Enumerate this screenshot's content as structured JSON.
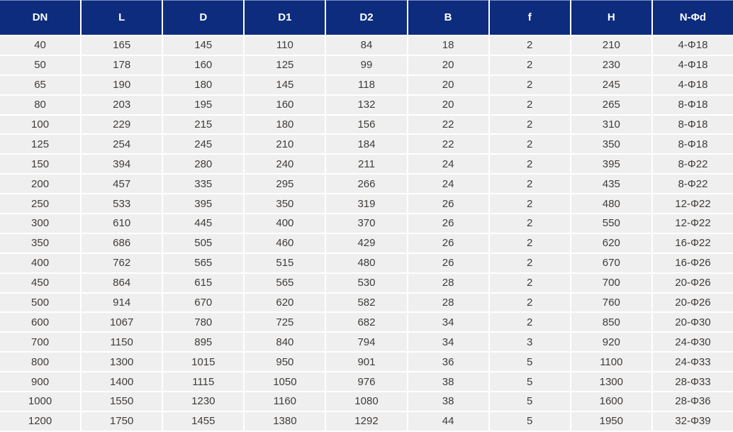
{
  "table": {
    "columns": [
      "DN",
      "L",
      "D",
      "D1",
      "D2",
      "B",
      "f",
      "H",
      "N-Φd"
    ],
    "rows": [
      [
        "40",
        "165",
        "145",
        "110",
        "84",
        "18",
        "2",
        "210",
        "4-Φ18"
      ],
      [
        "50",
        "178",
        "160",
        "125",
        "99",
        "20",
        "2",
        "230",
        "4-Φ18"
      ],
      [
        "65",
        "190",
        "180",
        "145",
        "118",
        "20",
        "2",
        "245",
        "4-Φ18"
      ],
      [
        "80",
        "203",
        "195",
        "160",
        "132",
        "20",
        "2",
        "265",
        "8-Φ18"
      ],
      [
        "100",
        "229",
        "215",
        "180",
        "156",
        "22",
        "2",
        "310",
        "8-Φ18"
      ],
      [
        "125",
        "254",
        "245",
        "210",
        "184",
        "22",
        "2",
        "350",
        "8-Φ18"
      ],
      [
        "150",
        "394",
        "280",
        "240",
        "211",
        "24",
        "2",
        "395",
        "8-Φ22"
      ],
      [
        "200",
        "457",
        "335",
        "295",
        "266",
        "24",
        "2",
        "435",
        "8-Φ22"
      ],
      [
        "250",
        "533",
        "395",
        "350",
        "319",
        "26",
        "2",
        "480",
        "12-Φ22"
      ],
      [
        "300",
        "610",
        "445",
        "400",
        "370",
        "26",
        "2",
        "550",
        "12-Φ22"
      ],
      [
        "350",
        "686",
        "505",
        "460",
        "429",
        "26",
        "2",
        "620",
        "16-Φ22"
      ],
      [
        "400",
        "762",
        "565",
        "515",
        "480",
        "26",
        "2",
        "670",
        "16-Φ26"
      ],
      [
        "450",
        "864",
        "615",
        "565",
        "530",
        "28",
        "2",
        "700",
        "20-Φ26"
      ],
      [
        "500",
        "914",
        "670",
        "620",
        "582",
        "28",
        "2",
        "760",
        "20-Φ26"
      ],
      [
        "600",
        "1067",
        "780",
        "725",
        "682",
        "34",
        "2",
        "850",
        "20-Φ30"
      ],
      [
        "700",
        "1150",
        "895",
        "840",
        "794",
        "34",
        "3",
        "920",
        "24-Φ30"
      ],
      [
        "800",
        "1300",
        "1015",
        "950",
        "901",
        "36",
        "5",
        "1100",
        "24-Φ33"
      ],
      [
        "900",
        "1400",
        "1115",
        "1050",
        "976",
        "38",
        "5",
        "1300",
        "28-Φ33"
      ],
      [
        "1000",
        "1550",
        "1230",
        "1160",
        "1080",
        "38",
        "5",
        "1600",
        "28-Φ36"
      ],
      [
        "1200",
        "1750",
        "1455",
        "1380",
        "1292",
        "44",
        "5",
        "1950",
        "32-Φ39"
      ]
    ],
    "colors": {
      "header_bg": "#0d2c7e",
      "header_text": "#ffffff",
      "row_bg": "#efefef",
      "separator": "#ffffff",
      "body_text": "#403c39"
    }
  },
  "chart_data": {
    "type": "table",
    "title": "",
    "columns": [
      "DN",
      "L",
      "D",
      "D1",
      "D2",
      "B",
      "f",
      "H",
      "N-Φd"
    ],
    "rows": [
      [
        40,
        165,
        145,
        110,
        84,
        18,
        2,
        210,
        "4-Φ18"
      ],
      [
        50,
        178,
        160,
        125,
        99,
        20,
        2,
        230,
        "4-Φ18"
      ],
      [
        65,
        190,
        180,
        145,
        118,
        20,
        2,
        245,
        "4-Φ18"
      ],
      [
        80,
        203,
        195,
        160,
        132,
        20,
        2,
        265,
        "8-Φ18"
      ],
      [
        100,
        229,
        215,
        180,
        156,
        22,
        2,
        310,
        "8-Φ18"
      ],
      [
        125,
        254,
        245,
        210,
        184,
        22,
        2,
        350,
        "8-Φ18"
      ],
      [
        150,
        394,
        280,
        240,
        211,
        24,
        2,
        395,
        "8-Φ22"
      ],
      [
        200,
        457,
        335,
        295,
        266,
        24,
        2,
        435,
        "8-Φ22"
      ],
      [
        250,
        533,
        395,
        350,
        319,
        26,
        2,
        480,
        "12-Φ22"
      ],
      [
        300,
        610,
        445,
        400,
        370,
        26,
        2,
        550,
        "12-Φ22"
      ],
      [
        350,
        686,
        505,
        460,
        429,
        26,
        2,
        620,
        "16-Φ22"
      ],
      [
        400,
        762,
        565,
        515,
        480,
        26,
        2,
        670,
        "16-Φ26"
      ],
      [
        450,
        864,
        615,
        565,
        530,
        28,
        2,
        700,
        "20-Φ26"
      ],
      [
        500,
        914,
        670,
        620,
        582,
        28,
        2,
        760,
        "20-Φ26"
      ],
      [
        600,
        1067,
        780,
        725,
        682,
        34,
        2,
        850,
        "20-Φ30"
      ],
      [
        700,
        1150,
        895,
        840,
        794,
        34,
        3,
        920,
        "24-Φ30"
      ],
      [
        800,
        1300,
        1015,
        950,
        901,
        36,
        5,
        1100,
        "24-Φ33"
      ],
      [
        900,
        1400,
        1115,
        1050,
        976,
        38,
        5,
        1300,
        "28-Φ33"
      ],
      [
        1000,
        1550,
        1230,
        1160,
        1080,
        38,
        5,
        1600,
        "28-Φ36"
      ],
      [
        1200,
        1750,
        1455,
        1380,
        1292,
        44,
        5,
        1950,
        "32-Φ39"
      ]
    ]
  }
}
